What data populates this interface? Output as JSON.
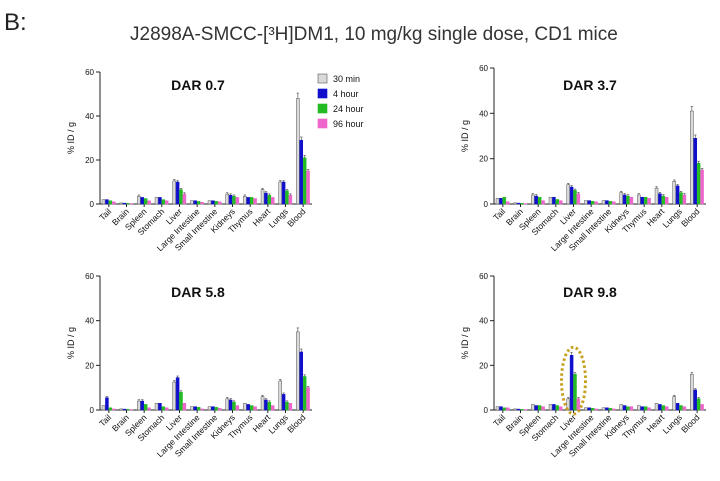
{
  "figure": {
    "panel_label": "B:",
    "title": "J2898A-SMCC-[³H]DM1, 10 mg/kg single dose, CD1 mice"
  },
  "legend": [
    "30 min",
    "4 hour",
    "24 hour",
    "96 hour"
  ],
  "colors": {
    "30 min": "#d9d9d9",
    "4 hour": "#1010cc",
    "24 hour": "#22bb22",
    "96 hour": "#ee66cc",
    "highlight": "#c8a020"
  },
  "chart_data": [
    {
      "type": "bar",
      "title": "DAR 0.7",
      "ylabel": "% ID / g",
      "ylim": [
        0,
        60
      ],
      "yticks": [
        "0",
        "20",
        "40",
        "60"
      ],
      "categories": [
        "Tail",
        "Brain",
        "Spleen",
        "Stomach",
        "Liver",
        "Large Intestine",
        "Small Intestine",
        "Kidneys",
        "Thymus",
        "Heart",
        "Lungs",
        "Blood"
      ],
      "series": [
        {
          "name": "30 min",
          "values": [
            2,
            0.5,
            3.5,
            3,
            10.5,
            1.5,
            1.5,
            4.5,
            3.5,
            6.5,
            10,
            48
          ]
        },
        {
          "name": "4 hour",
          "values": [
            2,
            0.4,
            3,
            3,
            10,
            1.5,
            1.5,
            4,
            3,
            5,
            10,
            29
          ]
        },
        {
          "name": "24 hour",
          "values": [
            1.5,
            0.3,
            2.5,
            2,
            6.5,
            1.2,
            1.2,
            3.5,
            3,
            4,
            6,
            21
          ]
        },
        {
          "name": "96 hour",
          "values": [
            1,
            0.2,
            1.5,
            1.5,
            4.5,
            0.8,
            1,
            3,
            2.5,
            3,
            4,
            15
          ]
        }
      ]
    },
    {
      "type": "bar",
      "title": "DAR 3.7",
      "ylabel": "% ID / g",
      "ylim": [
        0,
        60
      ],
      "yticks": [
        "0",
        "20",
        "40",
        "60"
      ],
      "categories": [
        "Tail",
        "Brain",
        "Spleen",
        "Stomach",
        "Liver",
        "Large Intestine",
        "Small Intestine",
        "Kidneys",
        "Thymus",
        "Heart",
        "Lungs",
        "Blood"
      ],
      "series": [
        {
          "name": "30 min",
          "values": [
            2.5,
            0.5,
            4,
            3,
            8.5,
            1.5,
            1.5,
            5,
            4,
            7,
            10,
            41
          ]
        },
        {
          "name": "4 hour",
          "values": [
            2.5,
            0.4,
            3.5,
            3,
            7.5,
            1.5,
            1.5,
            4,
            3,
            4.5,
            8,
            29
          ]
        },
        {
          "name": "24 hour",
          "values": [
            3,
            0.3,
            3,
            2,
            6,
            1.2,
            1.2,
            3.5,
            3,
            3.5,
            5,
            18
          ]
        },
        {
          "name": "96 hour",
          "values": [
            1,
            0.2,
            1.5,
            1.5,
            4.5,
            1,
            1,
            3,
            2.5,
            3,
            4,
            15
          ]
        }
      ]
    },
    {
      "type": "bar",
      "title": "DAR 5.8",
      "ylabel": "% ID / g",
      "ylim": [
        0,
        60
      ],
      "yticks": [
        "0",
        "20",
        "40",
        "60"
      ],
      "categories": [
        "Tail",
        "Brain",
        "Spleen",
        "Stomach",
        "Liver",
        "Large Intestine",
        "Small Intestine",
        "Kidneys",
        "Thymus",
        "Heart",
        "Lungs",
        "Blood"
      ],
      "series": [
        {
          "name": "30 min",
          "values": [
            2,
            0.5,
            4,
            3,
            12.5,
            1.5,
            1.5,
            5,
            3,
            6,
            13,
            35
          ]
        },
        {
          "name": "4 hour",
          "values": [
            5.5,
            0.4,
            4,
            3,
            14.5,
            1.5,
            1.5,
            4.5,
            2.5,
            4.5,
            7,
            26
          ]
        },
        {
          "name": "24 hour",
          "values": [
            1,
            0.3,
            2.5,
            1.5,
            8,
            1.2,
            1.2,
            3.5,
            2,
            3.5,
            3.5,
            15
          ]
        },
        {
          "name": "96 hour",
          "values": [
            0.5,
            0.2,
            1,
            1,
            3,
            0.5,
            0.8,
            2,
            1.5,
            2,
            3,
            10
          ]
        }
      ]
    },
    {
      "type": "bar",
      "title": "DAR 9.8",
      "ylabel": "% ID / g",
      "ylim": [
        0,
        60
      ],
      "yticks": [
        "0",
        "20",
        "40",
        "60"
      ],
      "categories": [
        "Tail",
        "Brain",
        "Spleen",
        "Stomach",
        "Liver",
        "Large Intestine",
        "Small Intestine",
        "Kidneys",
        "Thymus",
        "Heart",
        "Lungs",
        "Blood"
      ],
      "highlight_category": "Liver",
      "series": [
        {
          "name": "30 min",
          "values": [
            1.5,
            0.5,
            2.5,
            2.5,
            5,
            1,
            1,
            2.5,
            2,
            3,
            6,
            16
          ]
        },
        {
          "name": "4 hour",
          "values": [
            1.5,
            0.4,
            2,
            2.5,
            24.5,
            1,
            1,
            2,
            1.5,
            2.5,
            3,
            9
          ]
        },
        {
          "name": "24 hour",
          "values": [
            1,
            0.3,
            2,
            2,
            16,
            0.8,
            0.8,
            1.5,
            1.5,
            2,
            2,
            5
          ]
        },
        {
          "name": "96 hour",
          "values": [
            1,
            0.2,
            1.5,
            1.5,
            5,
            0.5,
            0.5,
            1.5,
            1,
            1.5,
            1.5,
            2.5
          ]
        }
      ]
    }
  ]
}
